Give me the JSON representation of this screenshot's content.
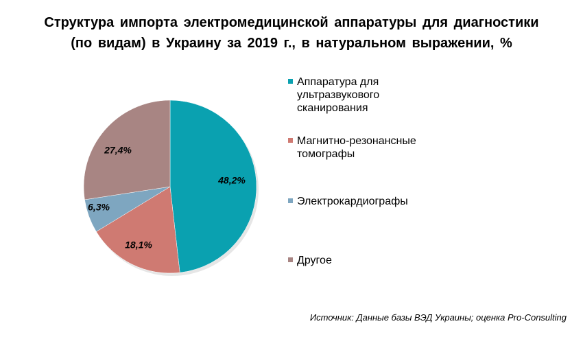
{
  "chart_data": {
    "type": "pie",
    "title": "Структура импорта электромедицинской аппаратуры для диагностики (по видам) в Украину за 2019 г., в натуральном выражении, %",
    "title_lines": [
      "Структура импорта электромедицинской аппаратуры для диагностики",
      "(по видам) в Украину за 2019 г., в натуральном выражении, %"
    ],
    "slices": [
      {
        "name": "Аппаратура для ультразвукового сканирования",
        "name_lines": [
          "Аппаратура для",
          "ультразвукового",
          "сканирования"
        ],
        "value": 48.2,
        "label": "48,2%",
        "color": "#0aa1b0"
      },
      {
        "name": "Магнитно-резонансные томографы",
        "name_lines": [
          "Магнитно-резонансные",
          "томографы"
        ],
        "value": 18.1,
        "label": "18,1%",
        "color": "#cf7a72"
      },
      {
        "name": "Электрокардиографы",
        "name_lines": [
          "Электрокардиографы"
        ],
        "value": 6.3,
        "label": "6,3%",
        "color": "#7ea6c0"
      },
      {
        "name": "Другое",
        "name_lines": [
          "Другое"
        ],
        "value": 27.4,
        "label": "27,4%",
        "color": "#a88583"
      }
    ],
    "legend_position": "right",
    "start_angle": "12 o'clock",
    "direction": "clockwise"
  },
  "source": "Источник: Данные базы ВЭД Украины; оценка Pro-Consulting"
}
